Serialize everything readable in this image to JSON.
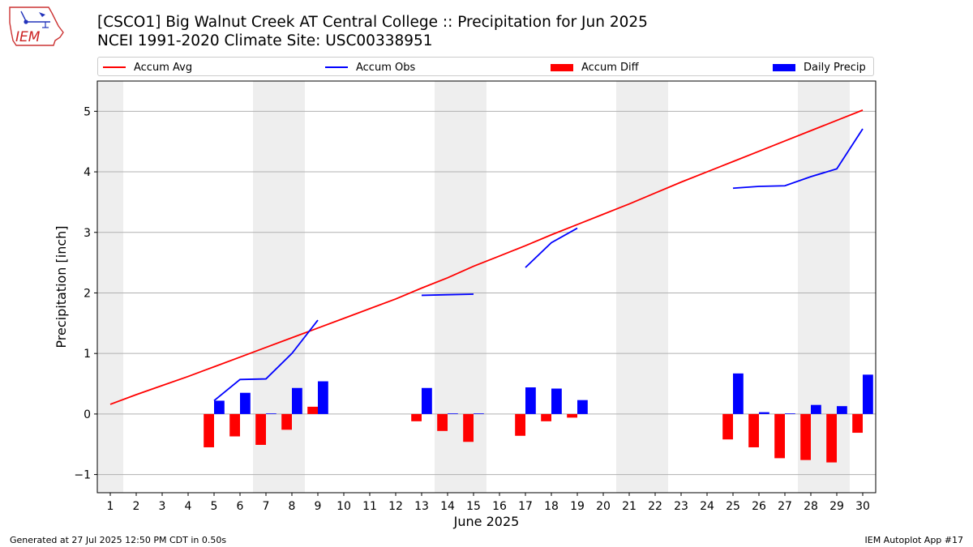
{
  "header": {
    "title_line1": "[CSCO1] Big Walnut Creek  AT Central College :: Precipitation for Jun 2025",
    "title_line2": "NCEI 1991-2020 Climate Site: USC00338951",
    "logo_text": "IEM"
  },
  "footer": {
    "left": "Generated at 27 Jul 2025 12:50 PM CDT in 0.50s",
    "right": "IEM Autoplot App #17"
  },
  "colors": {
    "accum_avg": "#ff0000",
    "accum_obs": "#0000ff",
    "accum_diff": "#ff0000",
    "daily_precip": "#0000ff",
    "weekend_shade": "#eeeeee",
    "grid": "#b0b0b0"
  },
  "chart_data": {
    "type": "bar",
    "xlabel": "June 2025",
    "ylabel": "Precipitation [inch]",
    "xlim": [
      0.5,
      30.5
    ],
    "ylim": [
      -1.3,
      5.5
    ],
    "grid": true,
    "legend_placement": "top",
    "y_ticks": [
      -1,
      0,
      1,
      2,
      3,
      4,
      5
    ],
    "y_tick_labels": [
      "−1",
      "0",
      "1",
      "2",
      "3",
      "4",
      "5"
    ],
    "x_ticks": [
      1,
      2,
      3,
      4,
      5,
      6,
      7,
      8,
      9,
      10,
      11,
      12,
      13,
      14,
      15,
      16,
      17,
      18,
      19,
      20,
      21,
      22,
      23,
      24,
      25,
      26,
      27,
      28,
      29,
      30
    ],
    "weekend_spans": [
      [
        0.5,
        1.5
      ],
      [
        6.5,
        8.5
      ],
      [
        13.5,
        15.5
      ],
      [
        20.5,
        22.5
      ],
      [
        27.5,
        29.5
      ]
    ],
    "series": [
      {
        "name": "Accum Avg",
        "kind": "line",
        "x": [
          1,
          2,
          3,
          4,
          5,
          6,
          7,
          8,
          9,
          10,
          11,
          12,
          13,
          14,
          15,
          16,
          17,
          18,
          19,
          20,
          21,
          22,
          23,
          24,
          25,
          26,
          27,
          28,
          29,
          30
        ],
        "values": [
          0.16,
          0.32,
          0.47,
          0.62,
          0.78,
          0.94,
          1.1,
          1.26,
          1.42,
          1.58,
          1.74,
          1.9,
          2.08,
          2.25,
          2.44,
          2.61,
          2.78,
          2.96,
          3.13,
          3.3,
          3.47,
          3.65,
          3.83,
          4.0,
          4.17,
          4.34,
          4.51,
          4.68,
          4.85,
          5.02
        ]
      },
      {
        "name": "Accum Obs",
        "kind": "line",
        "segments": [
          {
            "x": [
              5,
              6,
              7,
              8,
              9
            ],
            "values": [
              0.22,
              0.57,
              0.58,
              1.0,
              1.55
            ]
          },
          {
            "x": [
              13,
              14,
              15
            ],
            "values": [
              1.96,
              1.97,
              1.98
            ]
          },
          {
            "x": [
              17,
              18,
              19
            ],
            "values": [
              2.42,
              2.83,
              3.07
            ]
          },
          {
            "x": [
              25,
              26,
              27,
              28,
              29,
              30
            ],
            "values": [
              3.73,
              3.76,
              3.77,
              3.92,
              4.05,
              4.71
            ]
          }
        ]
      },
      {
        "name": "Accum Diff",
        "kind": "bar",
        "x": [
          5,
          6,
          7,
          8,
          9,
          13,
          14,
          15,
          17,
          18,
          19,
          25,
          26,
          27,
          28,
          29,
          30
        ],
        "values": [
          -0.55,
          -0.37,
          -0.51,
          -0.26,
          0.12,
          -0.12,
          -0.28,
          -0.46,
          -0.36,
          -0.12,
          -0.06,
          -0.42,
          -0.55,
          -0.73,
          -0.76,
          -0.8,
          -0.31
        ]
      },
      {
        "name": "Daily Precip",
        "kind": "bar",
        "x": [
          5,
          6,
          7,
          8,
          9,
          13,
          14,
          15,
          17,
          18,
          19,
          25,
          26,
          27,
          28,
          29,
          30
        ],
        "values": [
          0.22,
          0.35,
          0.01,
          0.43,
          0.54,
          0.43,
          0.01,
          0.01,
          0.44,
          0.42,
          0.23,
          0.67,
          0.03,
          0.01,
          0.15,
          0.13,
          0.65
        ]
      }
    ]
  }
}
